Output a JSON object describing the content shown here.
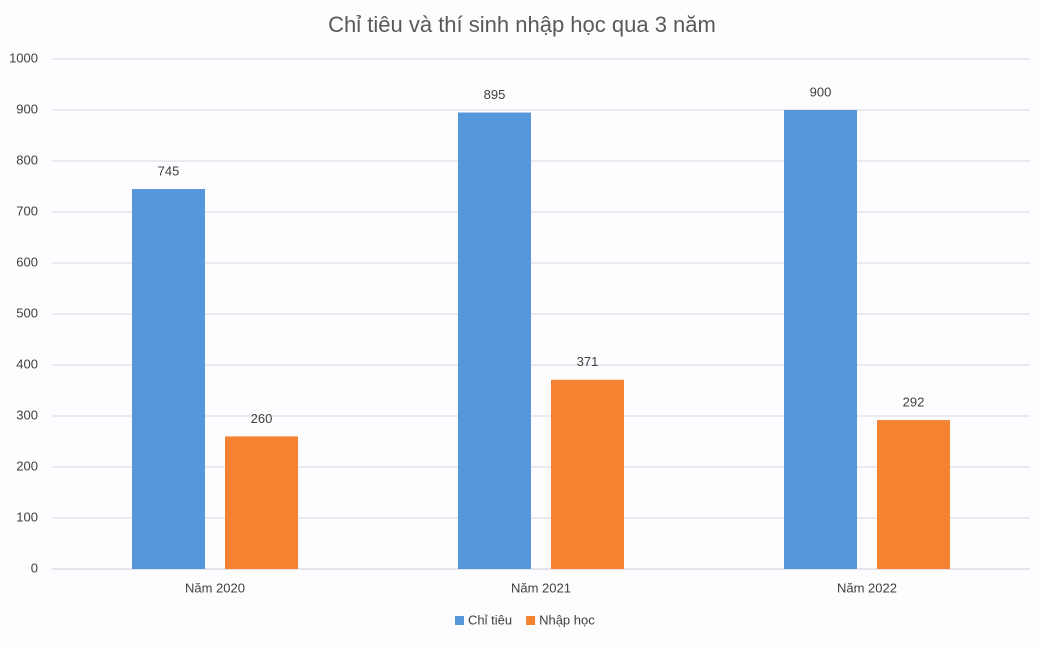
{
  "chart_data": {
    "type": "bar",
    "title": "Chỉ tiêu và thí sinh nhập học qua 3 năm",
    "categories": [
      "Năm 2020",
      "Năm 2021",
      "Năm 2022"
    ],
    "series": [
      {
        "name": "Chỉ tiêu",
        "color": "#5597da",
        "values": [
          745,
          895,
          900
        ]
      },
      {
        "name": "Nhập học",
        "color": "#f58231",
        "values": [
          260,
          371,
          292
        ]
      }
    ],
    "ylim": [
      0,
      1000
    ],
    "yticks": [
      0,
      100,
      200,
      300,
      400,
      500,
      600,
      700,
      800,
      900,
      1000
    ],
    "grid": true,
    "legend": "bottom"
  }
}
